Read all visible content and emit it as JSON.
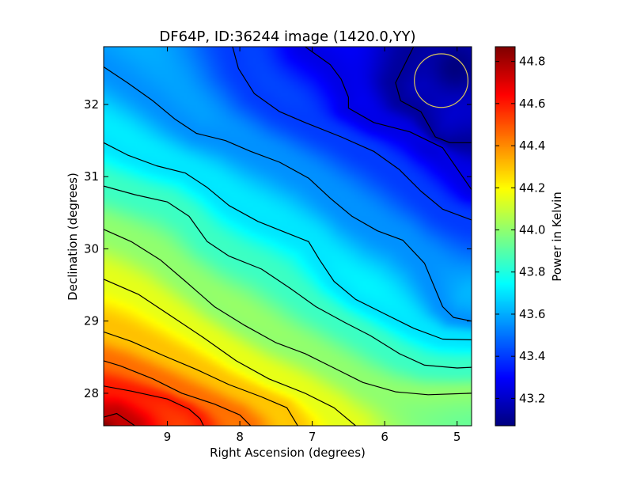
{
  "chart_data": {
    "type": "heatmap",
    "title": "DF64P, ID:36244 image (1420.0,YY)",
    "xlabel": "Right Ascension (degrees)",
    "ylabel": "Declination (degrees)",
    "xlim": [
      9.88,
      4.8
    ],
    "ylim": [
      27.55,
      32.8
    ],
    "x_direction": "decreasing",
    "xticks": [
      9,
      8,
      7,
      6,
      5
    ],
    "xtick_labels": [
      "9",
      "8",
      "7",
      "6",
      "5"
    ],
    "yticks": [
      28,
      29,
      30,
      31,
      32
    ],
    "ytick_labels": [
      "28",
      "29",
      "30",
      "31",
      "32"
    ],
    "colormap": "jet",
    "grid": false,
    "colorbar": {
      "label": "Power in Kelvin",
      "range": [
        43.07,
        44.87
      ],
      "ticks": [
        43.2,
        43.4,
        43.6,
        43.8,
        44.0,
        44.2,
        44.4,
        44.6,
        44.8
      ],
      "tick_labels": [
        "43.2",
        "43.4",
        "43.6",
        "43.8",
        "44.0",
        "44.2",
        "44.4",
        "44.6",
        "44.8"
      ]
    },
    "field_extremes": {
      "max": {
        "ra": 9.88,
        "dec": 27.55,
        "value": 44.87
      },
      "min": {
        "ra": 5.0,
        "dec": 32.5,
        "value": 43.07
      }
    },
    "contours": [
      {
        "level": 44.75,
        "points": [
          [
            9.88,
            27.67
          ],
          [
            9.7,
            27.72
          ],
          [
            9.55,
            27.62
          ],
          [
            9.45,
            27.55
          ]
        ]
      },
      {
        "level": 44.6,
        "points": [
          [
            9.88,
            28.1
          ],
          [
            9.5,
            28.03
          ],
          [
            9.0,
            27.92
          ],
          [
            8.7,
            27.78
          ],
          [
            8.55,
            27.65
          ],
          [
            8.5,
            27.55
          ]
        ]
      },
      {
        "level": 44.45,
        "points": [
          [
            9.88,
            28.45
          ],
          [
            9.65,
            28.38
          ],
          [
            9.2,
            28.2
          ],
          [
            8.8,
            28.0
          ],
          [
            8.35,
            27.85
          ],
          [
            8.0,
            27.7
          ],
          [
            7.85,
            27.55
          ]
        ]
      },
      {
        "level": 44.3,
        "points": [
          [
            9.88,
            28.85
          ],
          [
            9.5,
            28.72
          ],
          [
            9.05,
            28.52
          ],
          [
            8.6,
            28.33
          ],
          [
            8.15,
            28.12
          ],
          [
            7.7,
            27.95
          ],
          [
            7.35,
            27.8
          ],
          [
            7.2,
            27.55
          ]
        ]
      },
      {
        "level": 44.15,
        "points": [
          [
            9.88,
            29.58
          ],
          [
            9.4,
            29.37
          ],
          [
            8.95,
            29.07
          ],
          [
            8.5,
            28.77
          ],
          [
            8.05,
            28.45
          ],
          [
            7.6,
            28.2
          ],
          [
            7.1,
            28.0
          ],
          [
            6.7,
            27.8
          ],
          [
            6.4,
            27.55
          ]
        ]
      },
      {
        "level": 44.0,
        "points": [
          [
            9.88,
            30.27
          ],
          [
            9.5,
            30.1
          ],
          [
            9.1,
            29.85
          ],
          [
            8.75,
            29.55
          ],
          [
            8.35,
            29.2
          ],
          [
            7.95,
            28.95
          ],
          [
            7.5,
            28.7
          ],
          [
            7.1,
            28.55
          ],
          [
            6.7,
            28.35
          ],
          [
            6.3,
            28.15
          ],
          [
            5.85,
            28.02
          ],
          [
            5.4,
            27.98
          ],
          [
            4.8,
            28.0
          ]
        ]
      },
      {
        "level": 43.85,
        "points": [
          [
            9.88,
            30.87
          ],
          [
            9.45,
            30.75
          ],
          [
            9.0,
            30.65
          ],
          [
            8.7,
            30.45
          ],
          [
            8.45,
            30.1
          ],
          [
            8.15,
            29.9
          ],
          [
            7.7,
            29.72
          ],
          [
            7.3,
            29.45
          ],
          [
            6.95,
            29.2
          ],
          [
            6.55,
            28.98
          ],
          [
            6.2,
            28.8
          ],
          [
            5.8,
            28.55
          ],
          [
            5.45,
            28.39
          ],
          [
            5.0,
            28.35
          ],
          [
            4.8,
            28.36
          ]
        ]
      },
      {
        "level": 43.7,
        "points": [
          [
            9.88,
            31.47
          ],
          [
            9.55,
            31.3
          ],
          [
            9.15,
            31.15
          ],
          [
            8.75,
            31.05
          ],
          [
            8.45,
            30.85
          ],
          [
            8.15,
            30.6
          ],
          [
            7.75,
            30.38
          ],
          [
            7.35,
            30.22
          ],
          [
            7.05,
            30.1
          ],
          [
            6.9,
            29.85
          ],
          [
            6.7,
            29.55
          ],
          [
            6.4,
            29.3
          ],
          [
            6.0,
            29.1
          ],
          [
            5.6,
            28.9
          ],
          [
            5.2,
            28.75
          ],
          [
            4.8,
            28.74
          ]
        ]
      },
      {
        "level": 43.55,
        "points": [
          [
            9.88,
            32.52
          ],
          [
            9.55,
            32.3
          ],
          [
            9.2,
            32.05
          ],
          [
            8.9,
            31.8
          ],
          [
            8.6,
            31.6
          ],
          [
            8.2,
            31.5
          ],
          [
            7.85,
            31.35
          ],
          [
            7.45,
            31.2
          ],
          [
            7.05,
            30.98
          ],
          [
            6.75,
            30.7
          ],
          [
            6.45,
            30.45
          ],
          [
            6.1,
            30.25
          ],
          [
            5.75,
            30.12
          ],
          [
            5.45,
            29.8
          ],
          [
            5.2,
            29.2
          ],
          [
            5.05,
            29.05
          ],
          [
            4.8,
            29.0
          ]
        ]
      },
      {
        "level": 43.4,
        "points": [
          [
            8.1,
            32.8
          ],
          [
            8.02,
            32.5
          ],
          [
            7.8,
            32.15
          ],
          [
            7.45,
            31.9
          ],
          [
            7.1,
            31.75
          ],
          [
            6.6,
            31.55
          ],
          [
            6.15,
            31.35
          ],
          [
            5.8,
            31.1
          ],
          [
            5.5,
            30.8
          ],
          [
            5.2,
            30.55
          ],
          [
            4.8,
            30.4
          ]
        ]
      },
      {
        "level": 43.25,
        "points": [
          [
            7.1,
            32.8
          ],
          [
            6.75,
            32.55
          ],
          [
            6.6,
            32.35
          ],
          [
            6.5,
            32.1
          ],
          [
            6.5,
            31.95
          ],
          [
            6.15,
            31.75
          ],
          [
            5.65,
            31.62
          ],
          [
            5.2,
            31.4
          ],
          [
            4.8,
            30.82
          ]
        ]
      },
      {
        "level": 43.12,
        "points": [
          [
            5.6,
            32.8
          ],
          [
            5.85,
            32.3
          ],
          [
            5.78,
            32.05
          ],
          [
            5.5,
            31.9
          ],
          [
            5.3,
            31.55
          ],
          [
            5.1,
            31.47
          ],
          [
            4.8,
            31.47
          ]
        ]
      }
    ],
    "annotation": {
      "shape": "circle",
      "color": "#d9c45a",
      "center": {
        "ra": 5.22,
        "dec": 32.33
      },
      "radius_deg": 0.37
    }
  }
}
